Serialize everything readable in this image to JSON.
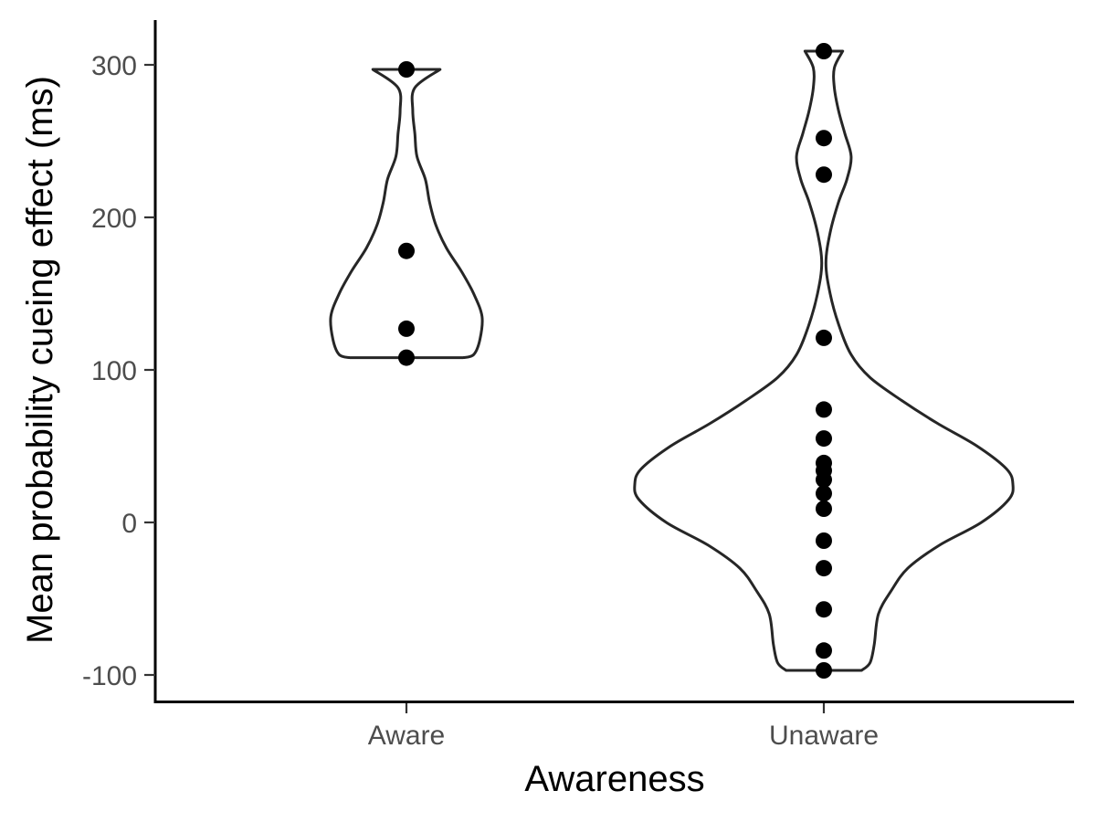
{
  "chart_data": {
    "type": "violin",
    "title": "",
    "xlabel": "Awareness",
    "ylabel": "Mean probability cueing effect (ms)",
    "categories": [
      "Aware",
      "Unaware"
    ],
    "ylim": [
      -120,
      330
    ],
    "yticks": [
      -100,
      0,
      100,
      200,
      300
    ],
    "ytick_labels": [
      "-100",
      "0",
      "100",
      "200",
      "300"
    ],
    "grid": false,
    "legend": "none",
    "colors": {
      "violin_fill": "#ffffff",
      "violin_stroke": "#262626",
      "point": "#000000",
      "axis": "#000000"
    },
    "groups": [
      {
        "name": "Aware",
        "points": [
          297,
          178,
          127,
          108
        ],
        "density": [
          [
            108,
            0.27
          ],
          [
            110,
            0.32
          ],
          [
            120,
            0.35
          ],
          [
            135,
            0.36
          ],
          [
            150,
            0.32
          ],
          [
            165,
            0.26
          ],
          [
            180,
            0.19
          ],
          [
            195,
            0.14
          ],
          [
            210,
            0.11
          ],
          [
            225,
            0.09
          ],
          [
            240,
            0.05
          ],
          [
            255,
            0.04
          ],
          [
            270,
            0.03
          ],
          [
            285,
            0.04
          ],
          [
            297,
            0.16
          ]
        ]
      },
      {
        "name": "Unaware",
        "points": [
          309,
          252,
          228,
          121,
          74,
          55,
          39,
          34,
          28,
          19,
          9,
          -12,
          -30,
          -57,
          -84,
          -97
        ],
        "density": [
          [
            -97,
            0.18
          ],
          [
            -92,
            0.22
          ],
          [
            -80,
            0.24
          ],
          [
            -60,
            0.26
          ],
          [
            -45,
            0.32
          ],
          [
            -30,
            0.4
          ],
          [
            -15,
            0.55
          ],
          [
            0,
            0.75
          ],
          [
            15,
            0.88
          ],
          [
            25,
            0.9
          ],
          [
            35,
            0.87
          ],
          [
            50,
            0.73
          ],
          [
            65,
            0.54
          ],
          [
            80,
            0.37
          ],
          [
            95,
            0.22
          ],
          [
            110,
            0.13
          ],
          [
            130,
            0.07
          ],
          [
            150,
            0.03
          ],
          [
            170,
            0.01
          ],
          [
            190,
            0.03
          ],
          [
            210,
            0.07
          ],
          [
            225,
            0.11
          ],
          [
            240,
            0.13
          ],
          [
            255,
            0.1
          ],
          [
            270,
            0.07
          ],
          [
            285,
            0.05
          ],
          [
            298,
            0.05
          ],
          [
            309,
            0.09
          ]
        ]
      }
    ]
  }
}
